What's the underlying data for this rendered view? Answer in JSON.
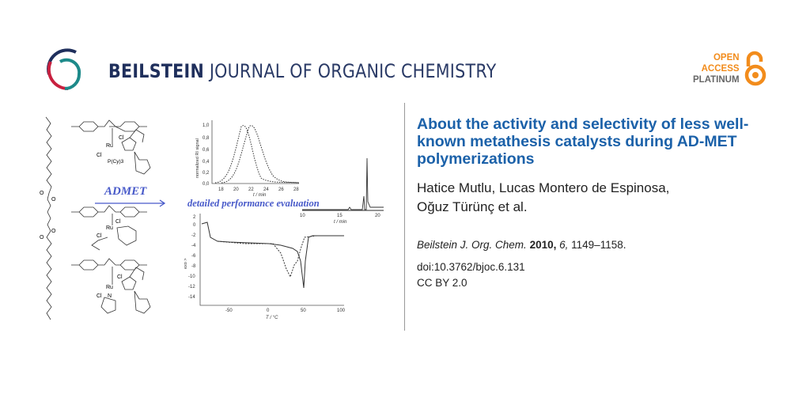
{
  "header": {
    "journal_bold": "BEILSTEIN",
    "journal_rest": "JOURNAL OF ORGANIC CHEMISTRY",
    "open_access": [
      "OPEN",
      "ACCESS",
      "PLATINUM"
    ],
    "colors": {
      "brand_navy": "#1f2f5c",
      "brand_red": "#c8203f",
      "brand_teal": "#1d8a8a",
      "oa_orange": "#f28c1c",
      "title_blue": "#1b61a9"
    }
  },
  "article": {
    "title": "About the activity and selectivity of less well-known metathesis catalysts during AD-MET polymerizations",
    "authors_line1": "Hatice Mutlu, Lucas Montero de Espinosa,",
    "authors_line2": "Oğuz Türünç et al.",
    "citation": {
      "journal": "Beilstein J. Org. Chem.",
      "year": "2010,",
      "volume": "6,",
      "pages": "1149–1158."
    },
    "doi": "doi:10.3762/bjoc.6.131",
    "license": "CC BY 2.0"
  },
  "graphic": {
    "arrow_label": "ADMET",
    "caption": "detailed performance evaluation",
    "gpc": {
      "ylabel": "normalized RI signal",
      "xlabel": "t / min",
      "yticks": [
        "1,0",
        "0,8",
        "0,6",
        "0,4",
        "0,2",
        "0,0"
      ],
      "xticks": [
        "18",
        "20",
        "22",
        "24",
        "26",
        "28"
      ]
    },
    "hplc": {
      "xlabel": "t / min",
      "xticks": [
        "10",
        "15",
        "20"
      ]
    },
    "dsc": {
      "ylabel": "exo >",
      "xlabel": "T / °C",
      "yticks": [
        "2",
        "0",
        "-2",
        "-4",
        "-6",
        "-8",
        "-10",
        "-12",
        "-14"
      ],
      "xticks": [
        "-50",
        "0",
        "50",
        "100"
      ]
    },
    "chem_labels": {
      "ru": "Ru",
      "cl": "Cl",
      "n": "N",
      "o": "O",
      "pcy3": "P(Cy)3"
    }
  }
}
